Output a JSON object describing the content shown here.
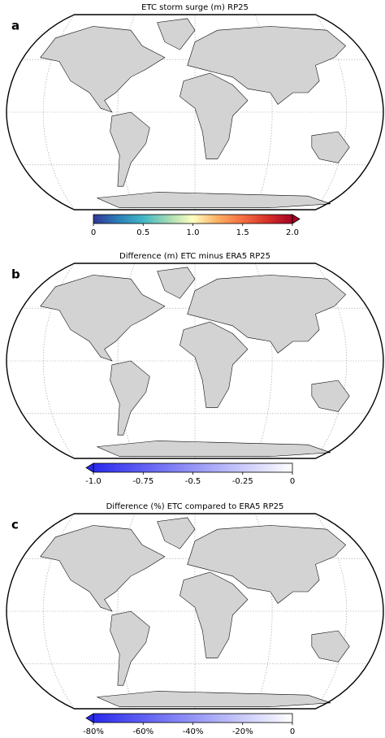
{
  "panels": [
    {
      "label": "a",
      "title": "ETC storm surge (m) RP25",
      "colorbar": {
        "range": [
          0,
          2
        ],
        "ticks": [
          0,
          0.5,
          {
            "value": 1,
            "label": "1.0"
          },
          1.5,
          {
            "value": 2,
            "label": "2.0"
          }
        ],
        "colors": [
          "#313695",
          "#2c7fb8",
          "#41b6c4",
          "#a1dab4",
          "#ffffbf",
          "#fdae61",
          "#f46d43",
          "#d73027",
          "#a50026"
        ],
        "extend": "max"
      }
    },
    {
      "label": "b",
      "title": "Difference (m) ETC minus ERA5 RP25",
      "colorbar": {
        "range": [
          -1,
          0
        ],
        "ticks": [
          {
            "value": -1,
            "label": "-1.0"
          },
          -0.75,
          -0.5,
          -0.25,
          0
        ],
        "colors": [
          "#2a2aee",
          "#ffffff"
        ],
        "extend": "min"
      }
    },
    {
      "label": "c",
      "title": "Difference (%) ETC compared to ERA5 RP25",
      "colorbar": {
        "range": [
          -80,
          0
        ],
        "ticks": [
          {
            "value": -80,
            "label": "-80%"
          },
          {
            "value": -60,
            "label": "-60%"
          },
          {
            "value": -40,
            "label": "-40%"
          },
          {
            "value": -20,
            "label": "-20%"
          },
          0
        ],
        "colors": [
          "#2a2aee",
          "#ffffff"
        ],
        "extend": "min"
      }
    }
  ]
}
